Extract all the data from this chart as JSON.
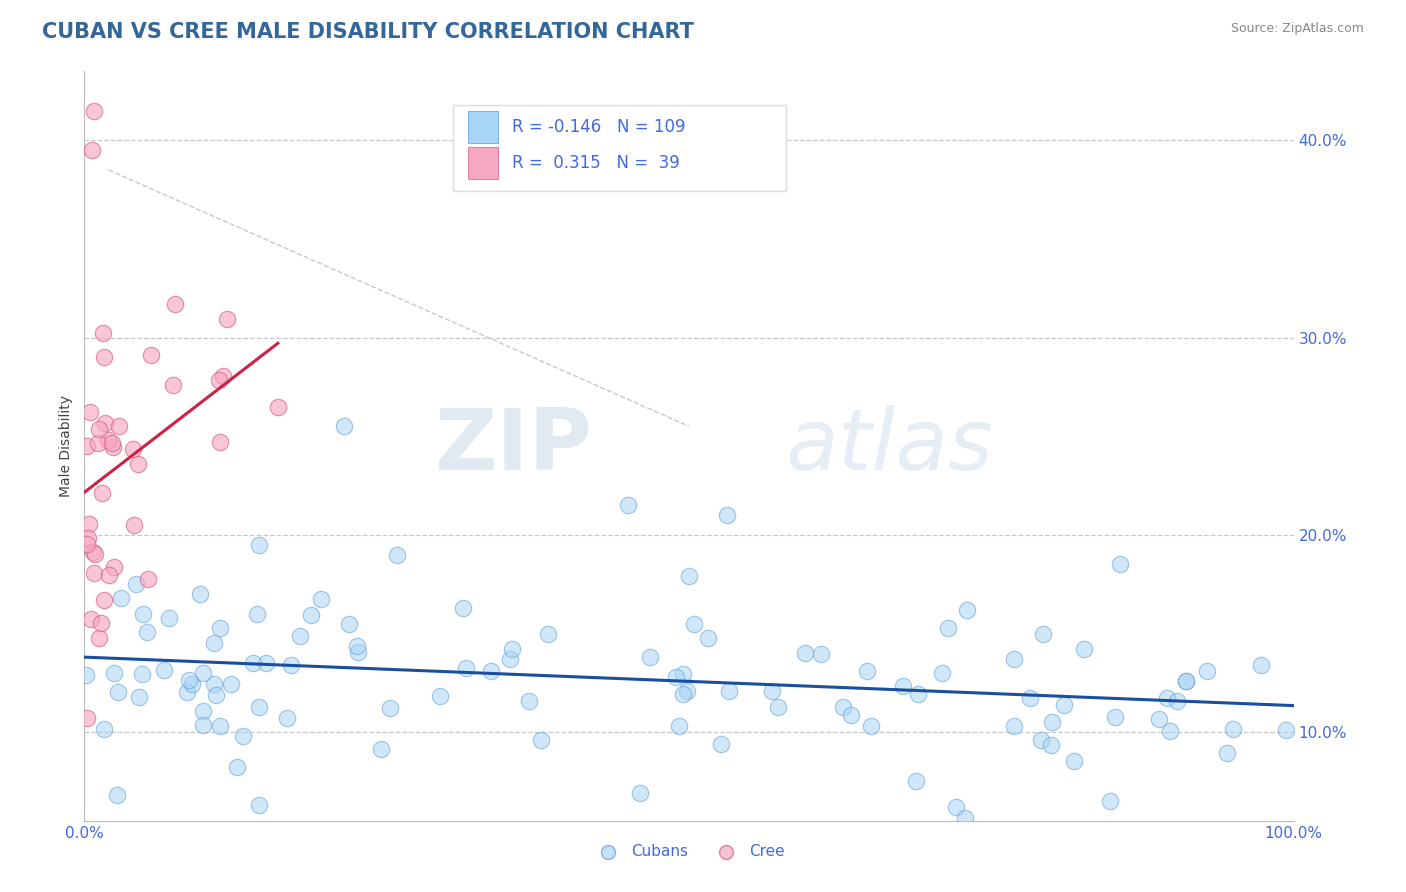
{
  "title": "CUBAN VS CREE MALE DISABILITY CORRELATION CHART",
  "source": "Source: ZipAtlas.com",
  "ylabel": "Male Disability",
  "xlim": [
    0.0,
    1.0
  ],
  "ylim": [
    0.055,
    0.435
  ],
  "yticks": [
    0.1,
    0.2,
    0.3,
    0.4
  ],
  "ytick_labels": [
    "10.0%",
    "20.0%",
    "30.0%",
    "40.0%"
  ],
  "xticks": [
    0.0,
    0.25,
    0.5,
    0.75,
    1.0
  ],
  "xtick_labels": [
    "0.0%",
    "",
    "",
    "",
    "100.0%"
  ],
  "cuban_color": "#a8d4f5",
  "cree_color": "#f5a8c0",
  "cuban_edge": "#5b9bd5",
  "cree_edge": "#d45b80",
  "trend_cuban_color": "#1a4fa0",
  "trend_cree_color": "#cc2244",
  "cuban_R": -0.146,
  "cuban_N": 109,
  "cree_R": 0.315,
  "cree_N": 39,
  "background_color": "#ffffff",
  "grid_color": "#c8c8c8",
  "title_color": "#336699",
  "legend_text_color": "#4169E1",
  "watermark_zip": "ZIP",
  "watermark_atlas": "atlas",
  "title_fontsize": 15,
  "axis_label_fontsize": 10,
  "tick_fontsize": 11,
  "legend_fontsize": 12
}
